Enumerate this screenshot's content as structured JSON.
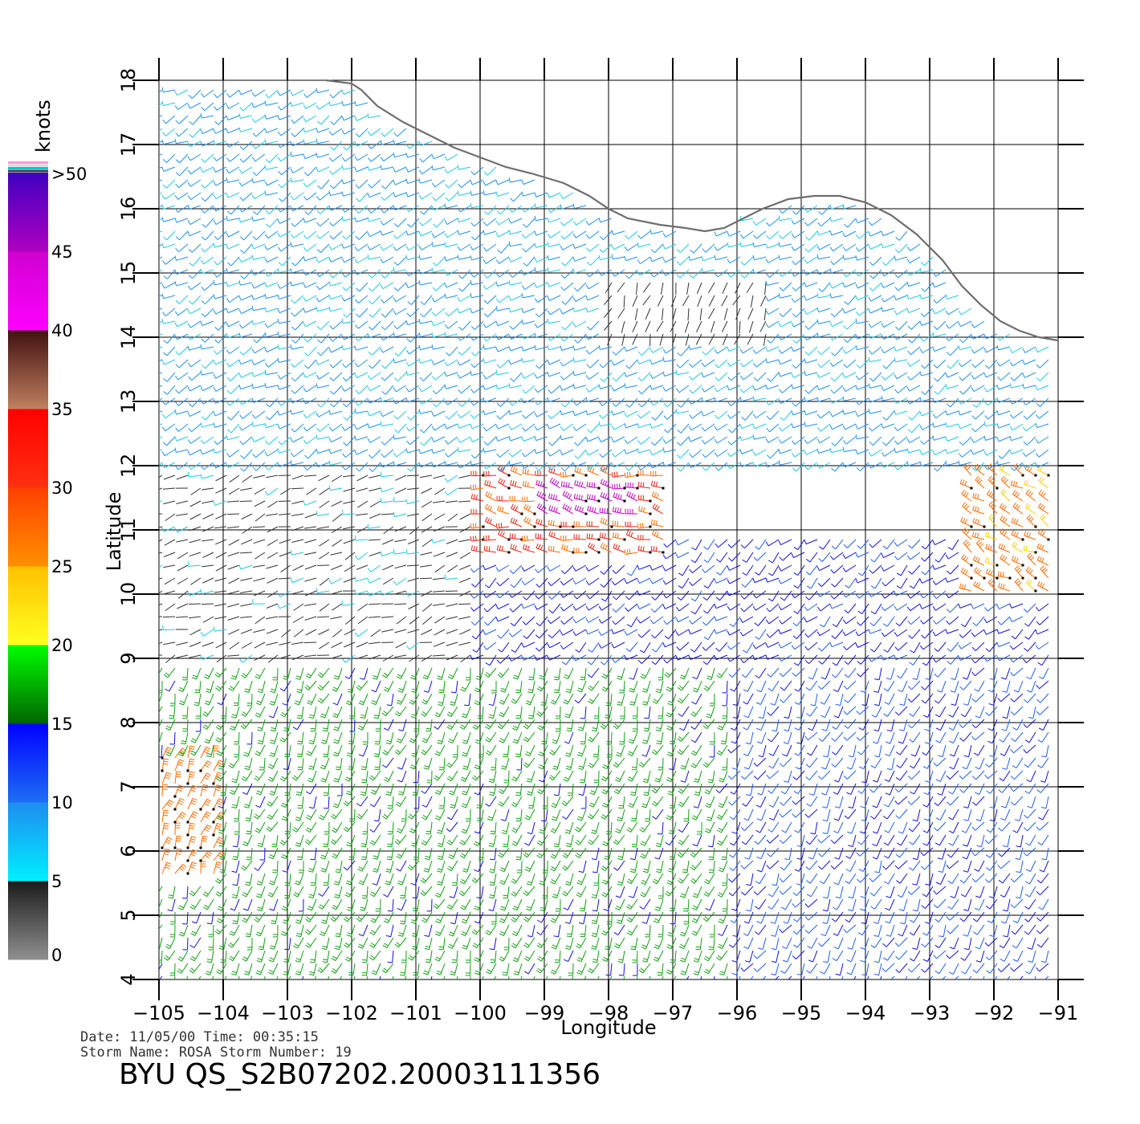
{
  "chart_data": {
    "type": "vector-field",
    "xlabel": "Longitude",
    "ylabel": "Latitude",
    "xlim": [
      -105,
      -91
    ],
    "ylim": [
      4,
      18
    ],
    "x_ticks": [
      -105,
      -104,
      -103,
      -102,
      -101,
      -100,
      -99,
      -98,
      -97,
      -96,
      -95,
      -94,
      -93,
      -92,
      -91
    ],
    "x_tick_labels": [
      "−105",
      "−104",
      "−103",
      "−102",
      "−101",
      "−100",
      "−99",
      "−98",
      "−97",
      "−96",
      "−95",
      "−94",
      "−93",
      "−92",
      "−91"
    ],
    "y_ticks": [
      4,
      5,
      6,
      7,
      8,
      9,
      10,
      11,
      12,
      13,
      14,
      15,
      16,
      17,
      18
    ],
    "y_tick_labels": [
      "4",
      "5",
      "6",
      "7",
      "8",
      "9",
      "10",
      "11",
      "12",
      "13",
      "14",
      "15",
      "16",
      "17",
      "18"
    ],
    "grid": true,
    "colorbar": {
      "unit": "knots",
      "labels": [
        "0",
        "5",
        "10",
        "15",
        "20",
        "25",
        "30",
        "35",
        "40",
        "45",
        ">50"
      ],
      "segments": [
        {
          "from": 0,
          "to": 5,
          "colors": [
            "#909090",
            "#1a1a1a"
          ]
        },
        {
          "from": 5,
          "to": 10,
          "colors": [
            "#00f0ff",
            "#1e8cf0"
          ]
        },
        {
          "from": 10,
          "to": 15,
          "colors": [
            "#1e6ef5",
            "#0000ff"
          ]
        },
        {
          "from": 15,
          "to": 20,
          "colors": [
            "#006400",
            "#00ff00"
          ]
        },
        {
          "from": 20,
          "to": 25,
          "colors": [
            "#ffff20",
            "#ffc000"
          ]
        },
        {
          "from": 25,
          "to": 30,
          "colors": [
            "#ff9000",
            "#ff4000"
          ]
        },
        {
          "from": 30,
          "to": 35,
          "colors": [
            "#ff3010",
            "#ff0000"
          ]
        },
        {
          "from": 35,
          "to": 40,
          "colors": [
            "#c08060",
            "#401010"
          ]
        },
        {
          "from": 40,
          "to": 45,
          "colors": [
            "#ff00ff",
            "#d000d0"
          ]
        },
        {
          "from": 45,
          "to": 50,
          "colors": [
            "#b000c0",
            "#4000c0"
          ]
        }
      ],
      "cap_colors": [
        "#ff9ad0",
        "#d8d8d8",
        "#00c8c8",
        "#404040"
      ]
    },
    "wind_regions": [
      {
        "lon": [
          -105,
          -91
        ],
        "lat": [
          4,
          9
        ],
        "speed_kt": 16,
        "dir_deg": 200
      },
      {
        "lon": [
          -96,
          -91
        ],
        "lat": [
          4,
          9
        ],
        "speed_kt": 12,
        "dir_deg": 210
      },
      {
        "lon": [
          -105,
          -91
        ],
        "lat": [
          9,
          11
        ],
        "speed_kt": 13,
        "dir_deg": 230
      },
      {
        "lon": [
          -105,
          -100
        ],
        "lat": [
          9,
          13
        ],
        "speed_kt": 4,
        "dir_deg": 250
      },
      {
        "lon": [
          -100,
          -97
        ],
        "lat": [
          10.5,
          13
        ],
        "speed_kt": 30,
        "dir_deg": 280
      },
      {
        "lon": [
          -99,
          -97.5
        ],
        "lat": [
          11.2,
          11.8
        ],
        "speed_kt": 44,
        "dir_deg": 285
      },
      {
        "lon": [
          -92.5,
          -91
        ],
        "lat": [
          10,
          12.5
        ],
        "speed_kt": 26,
        "dir_deg": 300
      },
      {
        "lon": [
          -105,
          -91
        ],
        "lat": [
          12,
          18
        ],
        "speed_kt": 8,
        "dir_deg": 240
      },
      {
        "lon": [
          -98,
          -95.5
        ],
        "lat": [
          14,
          15
        ],
        "speed_kt": 3,
        "dir_deg": 200
      },
      {
        "lon": [
          -105,
          -104
        ],
        "lat": [
          5.5,
          7.5
        ],
        "speed_kt": 27,
        "dir_deg": 20
      }
    ],
    "coastline": [
      [
        -102.4,
        18.0
      ],
      [
        -102.0,
        17.95
      ],
      [
        -101.85,
        17.85
      ],
      [
        -101.6,
        17.6
      ],
      [
        -101.2,
        17.35
      ],
      [
        -100.9,
        17.2
      ],
      [
        -100.4,
        16.95
      ],
      [
        -100.0,
        16.8
      ],
      [
        -99.6,
        16.65
      ],
      [
        -99.2,
        16.55
      ],
      [
        -98.7,
        16.4
      ],
      [
        -98.3,
        16.2
      ],
      [
        -98.0,
        16.0
      ],
      [
        -97.7,
        15.85
      ],
      [
        -97.2,
        15.75
      ],
      [
        -96.8,
        15.7
      ],
      [
        -96.5,
        15.65
      ],
      [
        -96.2,
        15.7
      ],
      [
        -95.9,
        15.85
      ],
      [
        -95.6,
        16.0
      ],
      [
        -95.2,
        16.15
      ],
      [
        -94.8,
        16.2
      ],
      [
        -94.4,
        16.2
      ],
      [
        -94.0,
        16.1
      ],
      [
        -93.6,
        15.9
      ],
      [
        -93.2,
        15.6
      ],
      [
        -92.8,
        15.2
      ],
      [
        -92.5,
        14.8
      ],
      [
        -92.2,
        14.5
      ],
      [
        -91.9,
        14.25
      ],
      [
        -91.6,
        14.1
      ],
      [
        -91.3,
        14.0
      ],
      [
        -91.0,
        13.95
      ]
    ]
  },
  "footer": {
    "date_line": "Date: 11/05/00   Time: 00:35:15",
    "storm_line": "Storm  Name: ROSA   Storm  Number: 19",
    "product_title": "BYU  QS_S2B07202.20003111356"
  }
}
